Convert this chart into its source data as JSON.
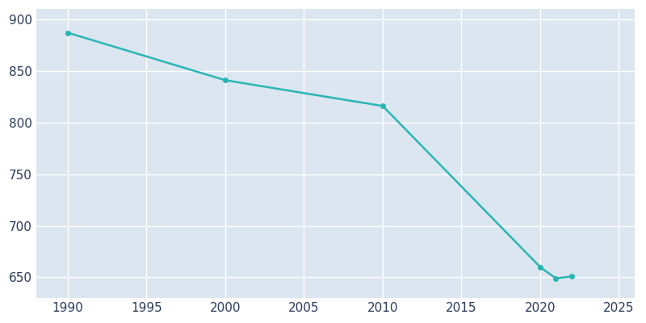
{
  "years": [
    1990,
    2000,
    2010,
    2020,
    2021,
    2022
  ],
  "population": [
    887,
    841,
    816,
    660,
    649,
    651
  ],
  "line_color": "#2ab5b5",
  "marker": "o",
  "marker_size": 4,
  "plot_bg_color": "#dce6f0",
  "fig_bg_color": "#ffffff",
  "grid_color": "#ffffff",
  "xlim": [
    1988,
    2026
  ],
  "ylim": [
    630,
    910
  ],
  "xticks": [
    1990,
    1995,
    2000,
    2005,
    2010,
    2015,
    2020,
    2025
  ],
  "yticks": [
    650,
    700,
    750,
    800,
    850,
    900
  ],
  "tick_label_color": "#2d3a5c",
  "tick_fontsize": 11
}
